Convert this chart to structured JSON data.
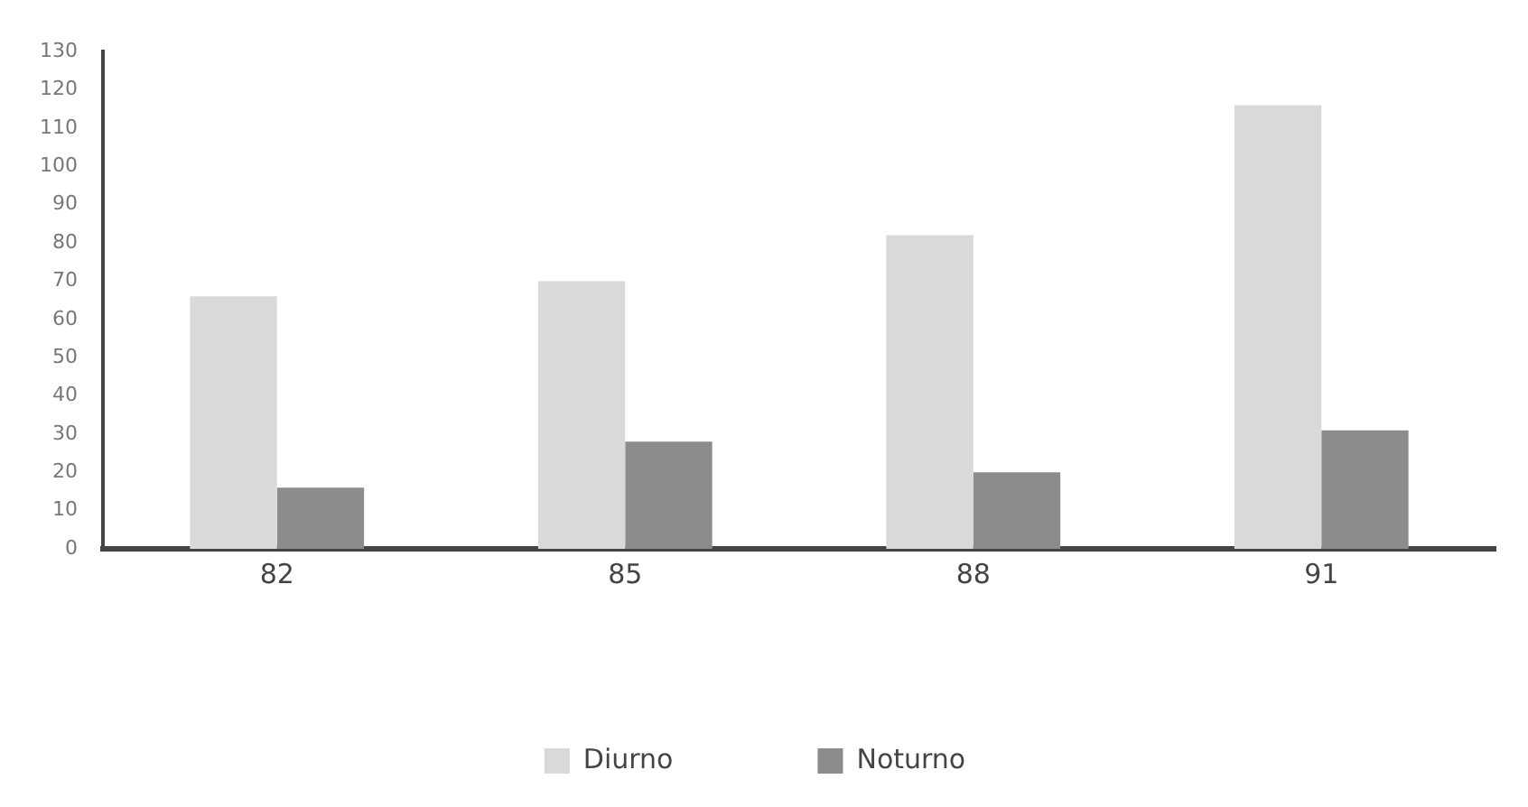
{
  "chart_data": {
    "type": "bar",
    "categories": [
      "82",
      "85",
      "88",
      "91"
    ],
    "series": [
      {
        "name": "Diurno",
        "color": "#d9d9d9",
        "values": [
          66,
          70,
          82,
          116
        ]
      },
      {
        "name": "Noturno",
        "color": "#8c8c8c",
        "values": [
          16,
          28,
          20,
          31
        ]
      }
    ],
    "ylim": [
      0,
      130
    ],
    "yticks": [
      0,
      10,
      20,
      30,
      40,
      50,
      60,
      70,
      80,
      90,
      100,
      110,
      120,
      130
    ],
    "grid": false,
    "legend": "bottom"
  }
}
